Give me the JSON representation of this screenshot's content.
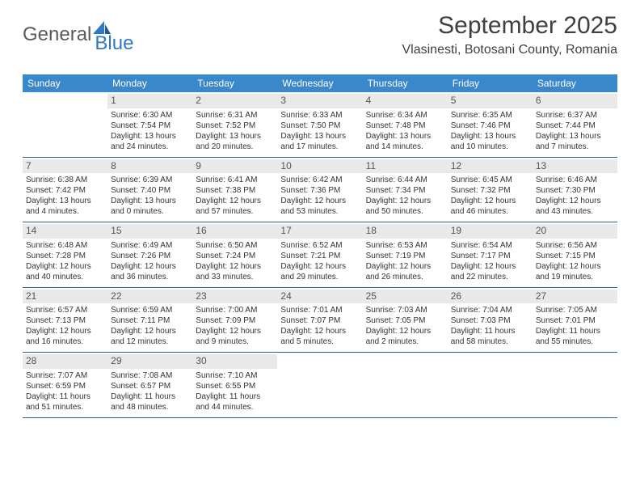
{
  "logo": {
    "part1": "General",
    "part2": "Blue"
  },
  "header": {
    "title": "September 2025",
    "location": "Vlasinesti, Botosani County, Romania"
  },
  "colors": {
    "header_bg": "#3a87c9",
    "header_text": "#ffffff",
    "daynum_bg": "#e9e9e9",
    "daynum_text": "#555555",
    "border": "#2f5d88",
    "logo_gray": "#5a5a5a",
    "logo_blue": "#2f78c4"
  },
  "dayNames": [
    "Sunday",
    "Monday",
    "Tuesday",
    "Wednesday",
    "Thursday",
    "Friday",
    "Saturday"
  ],
  "weeks": [
    [
      null,
      {
        "n": "1",
        "sr": "Sunrise: 6:30 AM",
        "ss": "Sunset: 7:54 PM",
        "d1": "Daylight: 13 hours",
        "d2": "and 24 minutes."
      },
      {
        "n": "2",
        "sr": "Sunrise: 6:31 AM",
        "ss": "Sunset: 7:52 PM",
        "d1": "Daylight: 13 hours",
        "d2": "and 20 minutes."
      },
      {
        "n": "3",
        "sr": "Sunrise: 6:33 AM",
        "ss": "Sunset: 7:50 PM",
        "d1": "Daylight: 13 hours",
        "d2": "and 17 minutes."
      },
      {
        "n": "4",
        "sr": "Sunrise: 6:34 AM",
        "ss": "Sunset: 7:48 PM",
        "d1": "Daylight: 13 hours",
        "d2": "and 14 minutes."
      },
      {
        "n": "5",
        "sr": "Sunrise: 6:35 AM",
        "ss": "Sunset: 7:46 PM",
        "d1": "Daylight: 13 hours",
        "d2": "and 10 minutes."
      },
      {
        "n": "6",
        "sr": "Sunrise: 6:37 AM",
        "ss": "Sunset: 7:44 PM",
        "d1": "Daylight: 13 hours",
        "d2": "and 7 minutes."
      }
    ],
    [
      {
        "n": "7",
        "sr": "Sunrise: 6:38 AM",
        "ss": "Sunset: 7:42 PM",
        "d1": "Daylight: 13 hours",
        "d2": "and 4 minutes."
      },
      {
        "n": "8",
        "sr": "Sunrise: 6:39 AM",
        "ss": "Sunset: 7:40 PM",
        "d1": "Daylight: 13 hours",
        "d2": "and 0 minutes."
      },
      {
        "n": "9",
        "sr": "Sunrise: 6:41 AM",
        "ss": "Sunset: 7:38 PM",
        "d1": "Daylight: 12 hours",
        "d2": "and 57 minutes."
      },
      {
        "n": "10",
        "sr": "Sunrise: 6:42 AM",
        "ss": "Sunset: 7:36 PM",
        "d1": "Daylight: 12 hours",
        "d2": "and 53 minutes."
      },
      {
        "n": "11",
        "sr": "Sunrise: 6:44 AM",
        "ss": "Sunset: 7:34 PM",
        "d1": "Daylight: 12 hours",
        "d2": "and 50 minutes."
      },
      {
        "n": "12",
        "sr": "Sunrise: 6:45 AM",
        "ss": "Sunset: 7:32 PM",
        "d1": "Daylight: 12 hours",
        "d2": "and 46 minutes."
      },
      {
        "n": "13",
        "sr": "Sunrise: 6:46 AM",
        "ss": "Sunset: 7:30 PM",
        "d1": "Daylight: 12 hours",
        "d2": "and 43 minutes."
      }
    ],
    [
      {
        "n": "14",
        "sr": "Sunrise: 6:48 AM",
        "ss": "Sunset: 7:28 PM",
        "d1": "Daylight: 12 hours",
        "d2": "and 40 minutes."
      },
      {
        "n": "15",
        "sr": "Sunrise: 6:49 AM",
        "ss": "Sunset: 7:26 PM",
        "d1": "Daylight: 12 hours",
        "d2": "and 36 minutes."
      },
      {
        "n": "16",
        "sr": "Sunrise: 6:50 AM",
        "ss": "Sunset: 7:24 PM",
        "d1": "Daylight: 12 hours",
        "d2": "and 33 minutes."
      },
      {
        "n": "17",
        "sr": "Sunrise: 6:52 AM",
        "ss": "Sunset: 7:21 PM",
        "d1": "Daylight: 12 hours",
        "d2": "and 29 minutes."
      },
      {
        "n": "18",
        "sr": "Sunrise: 6:53 AM",
        "ss": "Sunset: 7:19 PM",
        "d1": "Daylight: 12 hours",
        "d2": "and 26 minutes."
      },
      {
        "n": "19",
        "sr": "Sunrise: 6:54 AM",
        "ss": "Sunset: 7:17 PM",
        "d1": "Daylight: 12 hours",
        "d2": "and 22 minutes."
      },
      {
        "n": "20",
        "sr": "Sunrise: 6:56 AM",
        "ss": "Sunset: 7:15 PM",
        "d1": "Daylight: 12 hours",
        "d2": "and 19 minutes."
      }
    ],
    [
      {
        "n": "21",
        "sr": "Sunrise: 6:57 AM",
        "ss": "Sunset: 7:13 PM",
        "d1": "Daylight: 12 hours",
        "d2": "and 16 minutes."
      },
      {
        "n": "22",
        "sr": "Sunrise: 6:59 AM",
        "ss": "Sunset: 7:11 PM",
        "d1": "Daylight: 12 hours",
        "d2": "and 12 minutes."
      },
      {
        "n": "23",
        "sr": "Sunrise: 7:00 AM",
        "ss": "Sunset: 7:09 PM",
        "d1": "Daylight: 12 hours",
        "d2": "and 9 minutes."
      },
      {
        "n": "24",
        "sr": "Sunrise: 7:01 AM",
        "ss": "Sunset: 7:07 PM",
        "d1": "Daylight: 12 hours",
        "d2": "and 5 minutes."
      },
      {
        "n": "25",
        "sr": "Sunrise: 7:03 AM",
        "ss": "Sunset: 7:05 PM",
        "d1": "Daylight: 12 hours",
        "d2": "and 2 minutes."
      },
      {
        "n": "26",
        "sr": "Sunrise: 7:04 AM",
        "ss": "Sunset: 7:03 PM",
        "d1": "Daylight: 11 hours",
        "d2": "and 58 minutes."
      },
      {
        "n": "27",
        "sr": "Sunrise: 7:05 AM",
        "ss": "Sunset: 7:01 PM",
        "d1": "Daylight: 11 hours",
        "d2": "and 55 minutes."
      }
    ],
    [
      {
        "n": "28",
        "sr": "Sunrise: 7:07 AM",
        "ss": "Sunset: 6:59 PM",
        "d1": "Daylight: 11 hours",
        "d2": "and 51 minutes."
      },
      {
        "n": "29",
        "sr": "Sunrise: 7:08 AM",
        "ss": "Sunset: 6:57 PM",
        "d1": "Daylight: 11 hours",
        "d2": "and 48 minutes."
      },
      {
        "n": "30",
        "sr": "Sunrise: 7:10 AM",
        "ss": "Sunset: 6:55 PM",
        "d1": "Daylight: 11 hours",
        "d2": "and 44 minutes."
      },
      null,
      null,
      null,
      null
    ]
  ]
}
